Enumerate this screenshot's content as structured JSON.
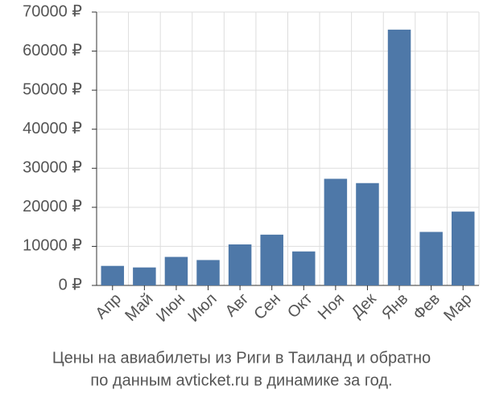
{
  "chart_data": {
    "type": "bar",
    "title": [
      "Цены на авиабилеты из Риги в Таиланд и обратно",
      "по данным avticket.ru в динамике за год."
    ],
    "categories": [
      "Апр",
      "Май",
      "Июн",
      "Июл",
      "Авг",
      "Сен",
      "Окт",
      "Ноя",
      "Дек",
      "Янв",
      "Фев",
      "Мар"
    ],
    "values": [
      5000,
      4600,
      7300,
      6500,
      10500,
      13000,
      8700,
      27300,
      26200,
      65500,
      13700,
      18900
    ],
    "color": "#4e78a8",
    "ylim": [
      0,
      70000
    ],
    "yticks": [
      {
        "value": 0,
        "label": "0 ₽"
      },
      {
        "value": 10000,
        "label": "10000 ₽"
      },
      {
        "value": 20000,
        "label": "20000 ₽"
      },
      {
        "value": 30000,
        "label": "30000 ₽"
      },
      {
        "value": 40000,
        "label": "40000 ₽"
      },
      {
        "value": 50000,
        "label": "50000 ₽"
      },
      {
        "value": 60000,
        "label": "60000 ₽"
      },
      {
        "value": 70000,
        "label": "70000 ₽"
      }
    ],
    "grid": true
  }
}
